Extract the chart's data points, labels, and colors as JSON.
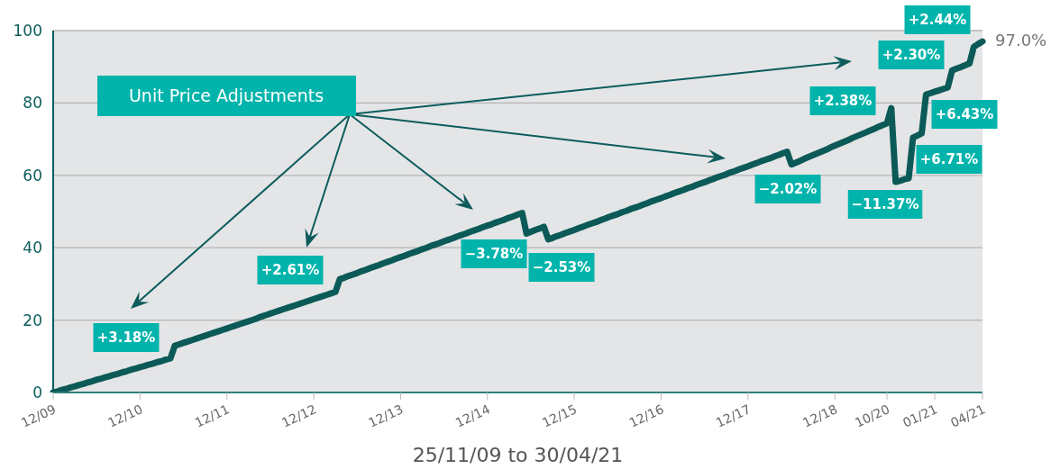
{
  "chart_data": {
    "type": "line",
    "xlabel": "25/11/09 to 30/04/21",
    "categories": [
      "12/09",
      null,
      null,
      null,
      null,
      null,
      null,
      null,
      null,
      null,
      null,
      null,
      null,
      null,
      null,
      null,
      null,
      null,
      null,
      null,
      "12/10",
      null,
      null,
      null,
      null,
      null,
      null,
      null,
      null,
      null,
      null,
      null,
      null,
      null,
      null,
      null,
      null,
      null,
      null,
      null,
      "12/11",
      null,
      null,
      null,
      null,
      null,
      null,
      null,
      null,
      null,
      null,
      null,
      null,
      null,
      null,
      null,
      null,
      null,
      null,
      null,
      "12/12",
      null,
      null,
      null,
      null,
      null,
      null,
      null,
      null,
      null,
      null,
      null,
      null,
      null,
      null,
      null,
      null,
      null,
      null,
      null,
      "12/13",
      null,
      null,
      null,
      null,
      null,
      null,
      null,
      null,
      null,
      null,
      null,
      null,
      null,
      null,
      null,
      null,
      null,
      null,
      null,
      "12/14",
      null,
      null,
      null,
      null,
      null,
      null,
      null,
      null,
      null,
      null,
      null,
      null,
      null,
      null,
      null,
      null,
      null,
      null,
      null,
      "12/15",
      null,
      null,
      null,
      null,
      null,
      null,
      null,
      null,
      null,
      null,
      null,
      null,
      null,
      null,
      null,
      null,
      null,
      null,
      null,
      "12/16",
      null,
      null,
      null,
      null,
      null,
      null,
      null,
      null,
      null,
      null,
      null,
      null,
      null,
      null,
      null,
      null,
      null,
      null,
      null,
      "12/17",
      null,
      null,
      null,
      null,
      null,
      null,
      null,
      null,
      null,
      null,
      null,
      null,
      null,
      null,
      null,
      null,
      null,
      null,
      null,
      "12/18",
      null,
      null,
      null,
      null,
      null,
      null,
      null,
      null,
      null,
      null,
      null,
      "10/20",
      null,
      null,
      null,
      null,
      null,
      null,
      null,
      null,
      null,
      null,
      "01/21",
      null,
      null,
      null,
      null,
      null,
      null,
      null,
      null,
      null,
      null,
      "04/21"
    ],
    "series": [
      {
        "color": "#0b5a58",
        "values": [
          0,
          0.3,
          0.7,
          1.0,
          1.4,
          1.7,
          2.1,
          2.4,
          2.8,
          3.1,
          3.5,
          3.8,
          4.2,
          4.5,
          4.9,
          5.2,
          5.6,
          5.9,
          6.3,
          6.6,
          7.0,
          7.3,
          7.7,
          8.0,
          8.4,
          8.7,
          9.1,
          9.4,
          12.9,
          13.3,
          13.7,
          14.1,
          14.5,
          14.9,
          15.3,
          15.7,
          16.1,
          16.5,
          16.9,
          17.3,
          17.7,
          18.1,
          18.5,
          18.9,
          19.3,
          19.7,
          20.1,
          20.5,
          21.0,
          21.4,
          21.8,
          22.2,
          22.6,
          23.0,
          23.4,
          23.8,
          24.2,
          24.6,
          25.0,
          25.4,
          25.8,
          26.2,
          26.6,
          27.0,
          27.4,
          27.8,
          31.3,
          31.7,
          32.2,
          32.6,
          33.0,
          33.5,
          33.9,
          34.4,
          34.8,
          35.2,
          35.7,
          36.1,
          36.5,
          37.0,
          37.4,
          37.8,
          38.3,
          38.7,
          39.1,
          39.6,
          40.0,
          40.5,
          40.9,
          41.3,
          41.8,
          42.2,
          42.6,
          43.1,
          43.5,
          43.9,
          44.4,
          44.8,
          45.2,
          45.7,
          46.1,
          46.5,
          47.0,
          47.4,
          47.8,
          48.3,
          48.7,
          49.2,
          49.6,
          43.9,
          44.4,
          44.9,
          45.3,
          45.8,
          42.3,
          42.7,
          43.2,
          43.6,
          44.1,
          44.5,
          44.9,
          45.4,
          45.8,
          46.3,
          46.7,
          47.1,
          47.6,
          48.0,
          48.5,
          48.9,
          49.3,
          49.8,
          50.2,
          50.7,
          51.1,
          51.5,
          52.0,
          52.4,
          52.9,
          53.3,
          53.7,
          54.2,
          54.6,
          55.1,
          55.5,
          55.9,
          56.4,
          56.8,
          57.3,
          57.7,
          58.1,
          58.6,
          59.0,
          59.5,
          59.9,
          60.3,
          60.8,
          61.2,
          61.7,
          62.1,
          62.5,
          63.0,
          63.4,
          63.9,
          64.3,
          64.7,
          65.2,
          65.6,
          66.1,
          66.5,
          63.0,
          63.5,
          64.0,
          64.6,
          65.1,
          65.6,
          66.1,
          66.6,
          67.1,
          67.7,
          68.2,
          68.7,
          69.2,
          69.7,
          70.3,
          70.8,
          71.3,
          71.8,
          72.3,
          72.8,
          73.4,
          73.9,
          74.4,
          78.6,
          58.2,
          58.5,
          58.9,
          59.2,
          70.4,
          71.0,
          71.6,
          82.3,
          82.7,
          83.1,
          83.5,
          83.9,
          84.3,
          89.0,
          89.5,
          89.9,
          90.4,
          90.9,
          95.5,
          96.3,
          97.0
        ]
      }
    ],
    "ylim": [
      0,
      100
    ],
    "yticks": [
      0,
      20,
      40,
      60,
      80,
      100
    ],
    "grid": "y",
    "marker": "none",
    "line_style": "solid",
    "annotations": [
      "Unit Price Adjustments",
      "+3.18%",
      "+2.61%",
      "−3.78%",
      "−2.53%",
      "−2.02%",
      "+2.38%",
      "−11.37%",
      "+6.71%",
      "+6.43%",
      "+2.30%",
      "+2.44%",
      "97.0%"
    ]
  }
}
